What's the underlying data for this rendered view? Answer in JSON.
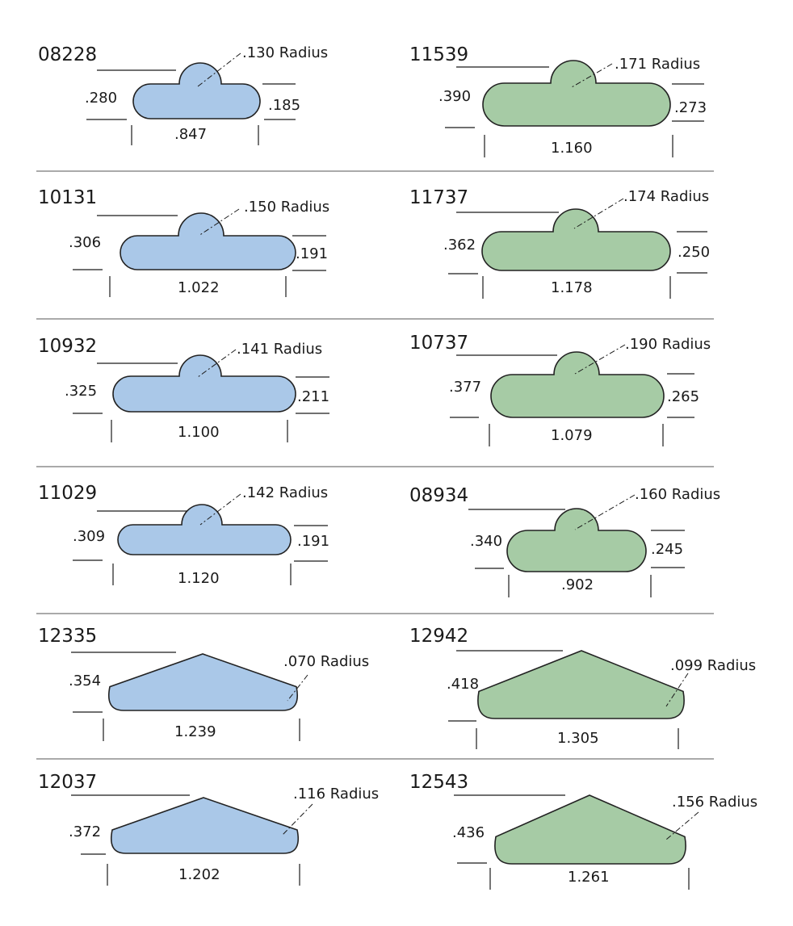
{
  "colors": {
    "blue": "#aac8e8",
    "green": "#a6cba5",
    "outline": "#222222",
    "text": "#1a1a1a"
  },
  "profiles": [
    {
      "part": "08228",
      "height": ".280",
      "flange": ".185",
      "width": ".847",
      "radius": ".130 Radius",
      "shape": "bump",
      "color": "blue"
    },
    {
      "part": "11539",
      "height": ".390",
      "flange": ".273",
      "width": "1.160",
      "radius": ".171 Radius",
      "shape": "bump",
      "color": "green"
    },
    {
      "part": "10131",
      "height": ".306",
      "flange": ".191",
      "width": "1.022",
      "radius": ".150 Radius",
      "shape": "bump",
      "color": "blue"
    },
    {
      "part": "11737",
      "height": ".362",
      "flange": ".250",
      "width": "1.178",
      "radius": ".174 Radius",
      "shape": "bump",
      "color": "green"
    },
    {
      "part": "10932",
      "height": ".325",
      "flange": ".211",
      "width": "1.100",
      "radius": ".141 Radius",
      "shape": "bump",
      "color": "blue"
    },
    {
      "part": "10737",
      "height": ".377",
      "flange": ".265",
      "width": "1.079",
      "radius": ".190 Radius",
      "shape": "bump",
      "color": "green"
    },
    {
      "part": "11029",
      "height": ".309",
      "flange": ".191",
      "width": "1.120",
      "radius": ".142 Radius",
      "shape": "bump",
      "color": "blue"
    },
    {
      "part": "08934",
      "height": ".340",
      "flange": ".245",
      "width": ".902",
      "radius": ".160 Radius",
      "shape": "bump",
      "color": "green"
    },
    {
      "part": "12335",
      "height": ".354",
      "flange": "",
      "width": "1.239",
      "radius": ".070 Radius",
      "shape": "triangle",
      "color": "blue"
    },
    {
      "part": "12942",
      "height": ".418",
      "flange": "",
      "width": "1.305",
      "radius": ".099 Radius",
      "shape": "triangle",
      "color": "green"
    },
    {
      "part": "12037",
      "height": ".372",
      "flange": "",
      "width": "1.202",
      "radius": ".116 Radius",
      "shape": "triangle",
      "color": "blue"
    },
    {
      "part": "12543",
      "height": ".436",
      "flange": "",
      "width": "1.261",
      "radius": ".156 Radius",
      "shape": "triangle",
      "color": "green"
    }
  ]
}
